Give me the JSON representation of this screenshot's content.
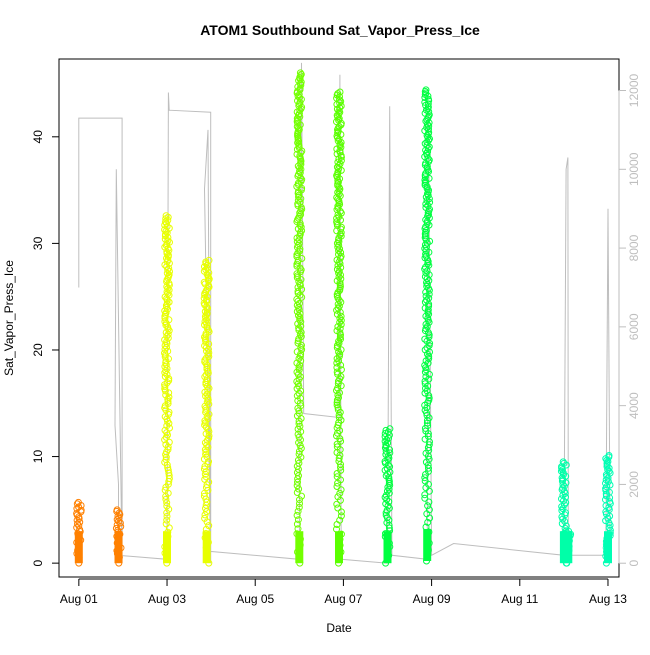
{
  "chart_data": {
    "type": "scatter",
    "title": "ATOM1 Southbound Sat_Vapor_Press_Ice",
    "xlabel": "Date",
    "ylabel": "Sat_Vapor_Press_Ice",
    "x_ticks": [
      "Aug 01",
      "Aug 03",
      "Aug 05",
      "Aug 07",
      "Aug 09",
      "Aug 11",
      "Aug 13"
    ],
    "x_tick_days": [
      1,
      3,
      5,
      7,
      9,
      11,
      13
    ],
    "xlim_days": [
      0.55,
      13.25
    ],
    "ylim": [
      -1.3,
      47.3
    ],
    "y_ticks": [
      0,
      10,
      20,
      30,
      40
    ],
    "y2_ticks": [
      0,
      2000,
      4000,
      6000,
      8000,
      10000,
      12000
    ],
    "y2lim": [
      -350,
      12800
    ],
    "y2_color": "#bebebe",
    "y2_series_name": "",
    "grid": false,
    "point_style": "open circle",
    "series": [
      {
        "day": 1.0,
        "ymin": 0.0,
        "ymax": 5.7,
        "color": "#ff8000"
      },
      {
        "day": 1.9,
        "ymin": 0.0,
        "ymax": 5.0,
        "color": "#ff8000"
      },
      {
        "day": 3.0,
        "ymin": 0.0,
        "ymax": 32.6,
        "color": "#e8ff00"
      },
      {
        "day": 3.9,
        "ymin": 0.0,
        "ymax": 28.4,
        "color": "#e8ff00"
      },
      {
        "day": 6.0,
        "ymin": 0.0,
        "ymax": 46.0,
        "color": "#73ff00"
      },
      {
        "day": 6.9,
        "ymin": 0.0,
        "ymax": 44.2,
        "color": "#5aff00"
      },
      {
        "day": 8.0,
        "ymin": 0.0,
        "ymax": 12.6,
        "color": "#00ff40"
      },
      {
        "day": 8.9,
        "ymin": 0.2,
        "ymax": 44.4,
        "color": "#00ff40"
      },
      {
        "day": 12.0,
        "ymin": 0.0,
        "ymax": 9.5,
        "color": "#00ffa8"
      },
      {
        "day": 12.1,
        "ymin": 0.0,
        "ymax": 3.0,
        "color": "#00ffa8"
      },
      {
        "day": 13.0,
        "ymin": 0.0,
        "ymax": 10.1,
        "color": "#00ffb4"
      }
    ],
    "y2_line": [
      [
        1.0,
        7000
      ],
      [
        1.0,
        11300
      ],
      [
        1.98,
        11300
      ],
      [
        1.98,
        0
      ],
      [
        1.85,
        10000
      ],
      [
        1.82,
        3500
      ],
      [
        1.9,
        2000
      ],
      [
        1.9,
        200
      ],
      [
        3.0,
        100
      ],
      [
        3.03,
        11950
      ],
      [
        3.05,
        11500
      ],
      [
        3.99,
        11450
      ],
      [
        3.99,
        0
      ],
      [
        3.85,
        9500
      ],
      [
        3.93,
        11000
      ],
      [
        3.98,
        300
      ],
      [
        6.0,
        100
      ],
      [
        6.05,
        12700
      ],
      [
        6.1,
        3800
      ],
      [
        6.9,
        3700
      ],
      [
        6.92,
        12400
      ],
      [
        6.95,
        100
      ],
      [
        8.0,
        0
      ],
      [
        8.05,
        11600
      ],
      [
        8.1,
        200
      ],
      [
        8.9,
        100
      ],
      [
        8.93,
        11400
      ],
      [
        9.0,
        200
      ],
      [
        9.5,
        500
      ],
      [
        12.0,
        200
      ],
      [
        12.05,
        10000
      ],
      [
        12.09,
        10300
      ],
      [
        12.1,
        200
      ],
      [
        12.95,
        200
      ],
      [
        13.0,
        9000
      ],
      [
        13.05,
        200
      ]
    ]
  }
}
